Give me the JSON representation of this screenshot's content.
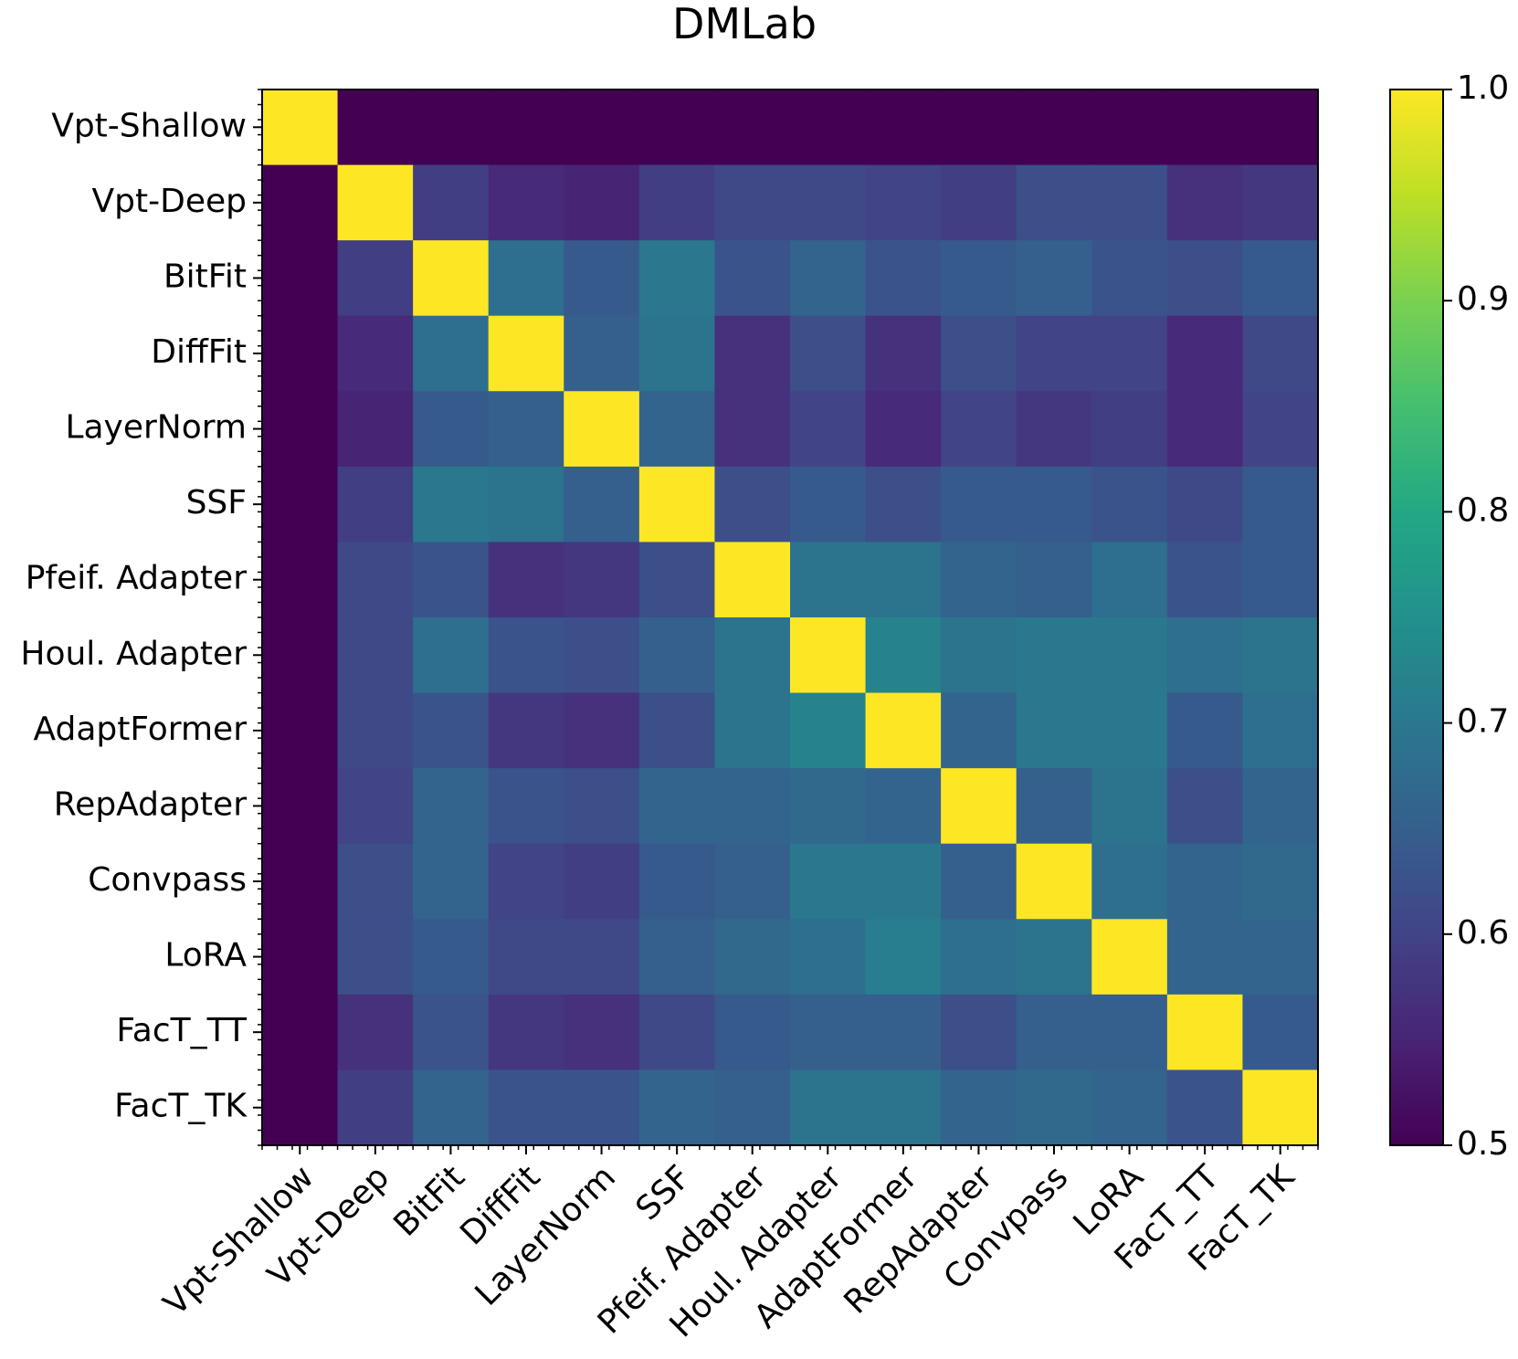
{
  "chart_data": {
    "type": "heatmap",
    "title": "DMLab",
    "xlabel": "",
    "ylabel": "",
    "labels": [
      "Vpt-Shallow",
      "Vpt-Deep",
      "BitFit",
      "DiffFit",
      "LayerNorm",
      "SSF",
      "Pfeif. Adapter",
      "Houl. Adapter",
      "AdaptFormer",
      "RepAdapter",
      "Convpass",
      "LoRA",
      "FacT_TT",
      "FacT_TK"
    ],
    "values": [
      [
        1.0,
        0.5,
        0.5,
        0.5,
        0.5,
        0.5,
        0.5,
        0.5,
        0.5,
        0.5,
        0.5,
        0.5,
        0.5,
        0.5
      ],
      [
        0.5,
        1.0,
        0.59,
        0.56,
        0.55,
        0.59,
        0.61,
        0.61,
        0.6,
        0.59,
        0.62,
        0.62,
        0.57,
        0.58
      ],
      [
        0.5,
        0.59,
        1.0,
        0.68,
        0.64,
        0.7,
        0.63,
        0.66,
        0.63,
        0.64,
        0.65,
        0.63,
        0.62,
        0.64
      ],
      [
        0.5,
        0.56,
        0.68,
        1.0,
        0.65,
        0.69,
        0.57,
        0.62,
        0.57,
        0.62,
        0.6,
        0.6,
        0.56,
        0.61
      ],
      [
        0.5,
        0.55,
        0.64,
        0.65,
        1.0,
        0.66,
        0.57,
        0.6,
        0.56,
        0.6,
        0.58,
        0.59,
        0.56,
        0.6
      ],
      [
        0.5,
        0.59,
        0.7,
        0.69,
        0.65,
        1.0,
        0.62,
        0.64,
        0.62,
        0.64,
        0.64,
        0.63,
        0.61,
        0.64
      ],
      [
        0.5,
        0.61,
        0.63,
        0.57,
        0.58,
        0.62,
        1.0,
        0.69,
        0.69,
        0.66,
        0.65,
        0.68,
        0.63,
        0.64
      ],
      [
        0.5,
        0.61,
        0.68,
        0.63,
        0.62,
        0.65,
        0.69,
        1.0,
        0.72,
        0.69,
        0.7,
        0.7,
        0.68,
        0.69
      ],
      [
        0.5,
        0.61,
        0.63,
        0.58,
        0.57,
        0.62,
        0.69,
        0.72,
        1.0,
        0.66,
        0.7,
        0.7,
        0.64,
        0.68
      ],
      [
        0.5,
        0.6,
        0.66,
        0.63,
        0.62,
        0.66,
        0.66,
        0.67,
        0.66,
        1.0,
        0.65,
        0.69,
        0.62,
        0.66
      ],
      [
        0.5,
        0.62,
        0.66,
        0.6,
        0.59,
        0.64,
        0.65,
        0.7,
        0.7,
        0.65,
        1.0,
        0.68,
        0.66,
        0.67
      ],
      [
        0.5,
        0.62,
        0.64,
        0.61,
        0.61,
        0.65,
        0.67,
        0.68,
        0.71,
        0.68,
        0.69,
        1.0,
        0.66,
        0.66
      ],
      [
        0.5,
        0.57,
        0.63,
        0.58,
        0.57,
        0.61,
        0.64,
        0.65,
        0.65,
        0.62,
        0.65,
        0.65,
        1.0,
        0.64
      ],
      [
        0.5,
        0.59,
        0.66,
        0.63,
        0.63,
        0.66,
        0.65,
        0.69,
        0.69,
        0.66,
        0.67,
        0.66,
        0.63,
        1.0
      ]
    ],
    "colormap": "viridis",
    "vmin": 0.5,
    "vmax": 1.0,
    "colorbar_ticks": [
      "0.5",
      "0.6",
      "0.7",
      "0.8",
      "0.9",
      "1.0"
    ]
  }
}
